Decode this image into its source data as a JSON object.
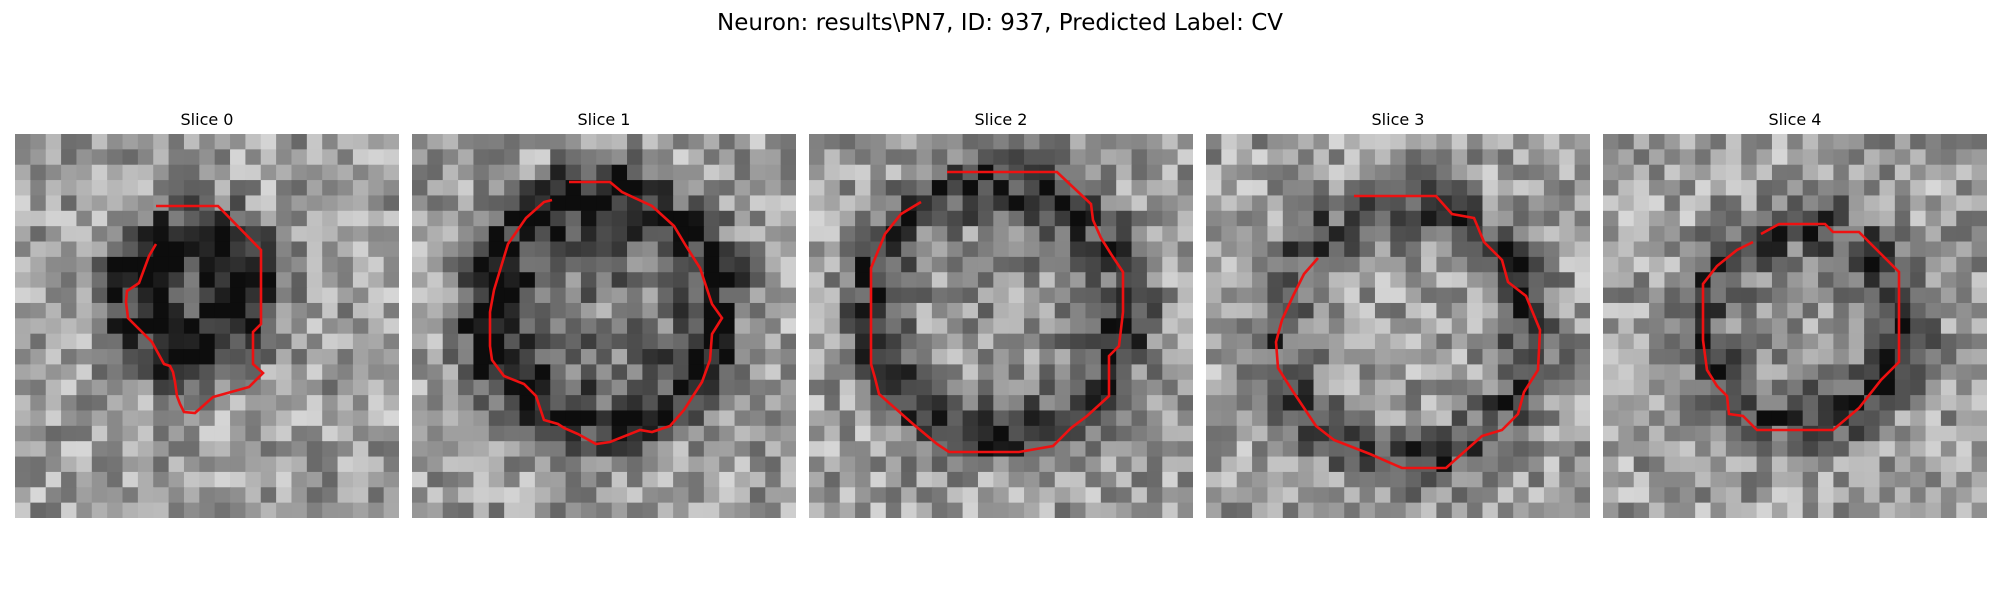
{
  "figure": {
    "title": "Neuron: results\\PN7, ID: 937, Predicted Label: CV"
  },
  "panels": [
    {
      "title": "Slice 0"
    },
    {
      "title": "Slice 1"
    },
    {
      "title": "Slice 2"
    },
    {
      "title": "Slice 3"
    },
    {
      "title": "Slice 4"
    }
  ],
  "colors": {
    "contour": "#ee1111",
    "background": "#ffffff"
  },
  "image": {
    "colormap": "grayscale",
    "grid_cells": 25
  }
}
